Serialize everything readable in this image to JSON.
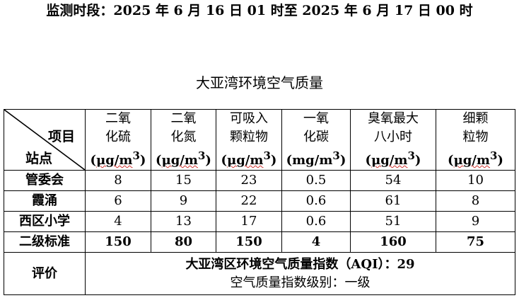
{
  "header": {
    "period": "监测时段：2025 年 6 月 16 日 01 时至 2025 年 6 月 17 日 00 时",
    "title": "大亚湾环境空气质量"
  },
  "table": {
    "corner_item": "项目",
    "corner_site": "站点",
    "columns": [
      {
        "line1": "二氧",
        "line2": "化硫",
        "unit_open": "(",
        "unit": "μg/m",
        "sup": "3",
        "unit_close": ")"
      },
      {
        "line1": "二氧",
        "line2": "化氮",
        "unit_open": "(",
        "unit": "μg/m",
        "sup": "3",
        "unit_close": ")"
      },
      {
        "line1": "可吸入",
        "line2": "颗粒物",
        "unit_open": "(",
        "unit": "μg/m",
        "sup": "3",
        "unit_close": ")"
      },
      {
        "line1": "一氧",
        "line2": "化碳",
        "unit_open": "(",
        "unit": "mg/m",
        "sup": "3",
        "unit_close": ")"
      },
      {
        "line1": "臭氧最大",
        "line2": "八小时",
        "unit_open": "(",
        "unit": "μg/m",
        "sup": "3",
        "unit_close": ")"
      },
      {
        "line1": "细颗",
        "line2": "粒物",
        "unit_open": "(",
        "unit": "μg/m",
        "sup": "3",
        "unit_close": ")"
      }
    ],
    "rows": [
      {
        "site": "管委会",
        "values": [
          "8",
          "15",
          "23",
          "0.5",
          "54",
          "10"
        ]
      },
      {
        "site": "霞涌",
        "values": [
          "6",
          "9",
          "22",
          "0.6",
          "61",
          "8"
        ]
      },
      {
        "site": "西区小学",
        "values": [
          "4",
          "13",
          "17",
          "0.6",
          "51",
          "9"
        ]
      }
    ],
    "standard": {
      "label": "二级标准",
      "values": [
        "150",
        "80",
        "150",
        "4",
        "160",
        "75"
      ]
    },
    "evaluation": {
      "label": "评价",
      "aqi_text": "大亚湾区环境空气质量指数（AQI）：29",
      "level_text": "空气质量指数级别：一级"
    }
  }
}
